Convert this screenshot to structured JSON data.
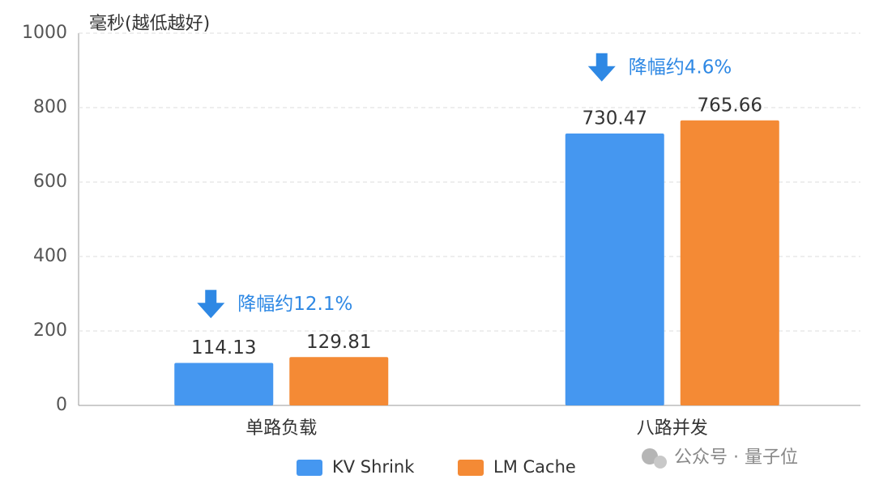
{
  "chart_data": {
    "type": "bar",
    "title": "毫秒(越低越好)",
    "categories": [
      "单路负载",
      "八路并发"
    ],
    "series": [
      {
        "name": "KV Shrink",
        "color": "#4597f0",
        "values": [
          114.13,
          730.47
        ]
      },
      {
        "name": "LM Cache",
        "color": "#f48a35",
        "values": [
          129.81,
          765.66
        ]
      }
    ],
    "annotations": [
      "降幅约12.1%",
      "降幅约4.6%"
    ],
    "annotation_color": "#2e88e4",
    "ylim": [
      0,
      1000
    ],
    "yticks": [
      0,
      200,
      400,
      600,
      800,
      1000
    ],
    "grid": true,
    "legend": "bottom",
    "watermark": "公众号 · 量子位"
  }
}
